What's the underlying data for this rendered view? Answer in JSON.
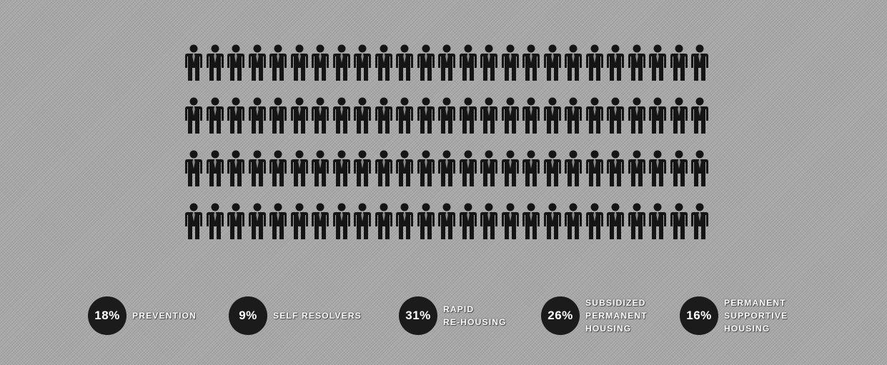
{
  "colors": {
    "badge": "#1b1b1b",
    "icon": "#151515",
    "label": "#ffffff",
    "background": "#a9a9a9"
  },
  "icon": "person-icon",
  "chart_data": {
    "type": "pictogram",
    "title": "",
    "grid": {
      "rows": 4,
      "columns": 25,
      "total": 100
    },
    "categories": [
      {
        "value": 18,
        "label": "18%",
        "name_lines": [
          "PREVENTION"
        ]
      },
      {
        "value": 9,
        "label": "9%",
        "name_lines": [
          "SELF RESOLVERS"
        ]
      },
      {
        "value": 31,
        "label": "31%",
        "name_lines": [
          "RAPID",
          "RE-HOUSING"
        ]
      },
      {
        "value": 26,
        "label": "26%",
        "name_lines": [
          "SUBSIDIZED",
          "PERMANENT",
          "HOUSING"
        ]
      },
      {
        "value": 16,
        "label": "16%",
        "name_lines": [
          "PERMANENT",
          "SUPPORTIVE",
          "HOUSING"
        ]
      }
    ]
  }
}
